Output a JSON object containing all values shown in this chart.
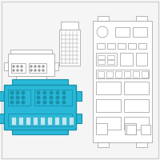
{
  "bg_color": "#f5f5f5",
  "border_color": "#cccccc",
  "outline_color": "#999999",
  "highlight_color": "#29b8d8",
  "highlight_edge": "#1a90aa",
  "fig_size": [
    2.0,
    2.0
  ],
  "dpi": 100
}
